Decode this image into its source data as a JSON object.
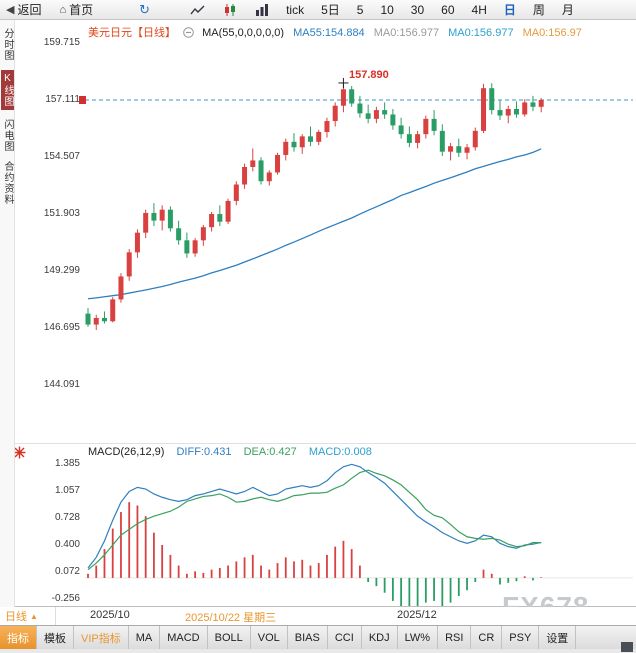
{
  "icons": {
    "back_arrow": "◀",
    "home": "⌂",
    "refresh": "↻"
  },
  "toolbar": {
    "back": "返回",
    "home": "首页",
    "tick": "tick",
    "five_day": "5日",
    "periods": [
      "5",
      "10",
      "30",
      "60",
      "4H",
      "日",
      "周",
      "月"
    ],
    "active_period": "日"
  },
  "sidebar": {
    "items": [
      {
        "label": "分时图",
        "active": false
      },
      {
        "label": "K线图",
        "active": true
      },
      {
        "label": "闪电图",
        "active": false
      },
      {
        "label": "合约资料",
        "active": false
      }
    ]
  },
  "chart_header": {
    "symbol": "美元日元",
    "period_tag": "【日线】",
    "ma_param": "MA(55,0,0,0,0,0)",
    "ma_values": [
      {
        "label": "MA55:154.884",
        "color": "#2e7fc0"
      },
      {
        "label": "MA0:156.977",
        "color": "#9a9a9a"
      },
      {
        "label": "MA0:156.977",
        "color": "#2e9fd0"
      },
      {
        "label": "MA0:156.97",
        "color": "#e39b3b"
      }
    ]
  },
  "main_axis": [
    "159.715",
    "157.111",
    "154.507",
    "151.903",
    "149.299",
    "146.695",
    "144.091"
  ],
  "macd_axis": [
    "1.385",
    "1.057",
    "0.728",
    "0.400",
    "0.072",
    "-0.256"
  ],
  "annotation": {
    "peak_price": "157.890"
  },
  "macd_header": {
    "title": "MACD(26,12,9)",
    "diff_label": "DIFF:0.431",
    "dea_label": "DEA:0.427",
    "macd_label": "MACD:0.008"
  },
  "x_axis": {
    "labels": [
      "2025/10",
      "2025/10/22 星期三",
      "2025/12"
    ],
    "highlight_index": 1
  },
  "watermark": "FX678",
  "bottom": {
    "period_selector": "日线",
    "arrow": "▲",
    "tabs": [
      "指标",
      "模板",
      "VIP指标",
      "MA",
      "MACD",
      "BOLL",
      "VOL",
      "BIAS",
      "CCI",
      "KDJ",
      "LW%",
      "RSI",
      "CR",
      "PSY",
      "设置"
    ],
    "active_tab": "指标",
    "vip_tab": "VIP指标"
  },
  "colors": {
    "up": "#d94040",
    "down": "#2a9d66",
    "ma55": "#2e7fc0",
    "diff": "#2e7fc0",
    "dea": "#3aa05f",
    "dashed": "#3a97c9",
    "tag": "#d03030",
    "cross": "#222222"
  },
  "chart_data": {
    "type": "candlestick+macd",
    "title": "美元日元 日线",
    "ylim": [
      144.091,
      159.715
    ],
    "macd_ylim": [
      -0.256,
      1.385
    ],
    "last_price": 157.111,
    "peak": {
      "index": 31,
      "price": 157.89
    },
    "candles": [
      [
        147.35,
        147.6,
        146.75,
        146.85
      ],
      [
        146.85,
        147.3,
        146.6,
        147.15
      ],
      [
        147.15,
        147.45,
        146.9,
        147.0
      ],
      [
        147.0,
        148.1,
        146.95,
        148.0
      ],
      [
        148.0,
        149.2,
        147.85,
        149.05
      ],
      [
        149.05,
        150.3,
        148.85,
        150.15
      ],
      [
        150.15,
        151.2,
        149.9,
        151.05
      ],
      [
        151.05,
        152.1,
        150.8,
        151.95
      ],
      [
        151.95,
        152.4,
        151.35,
        151.6
      ],
      [
        151.6,
        152.3,
        151.15,
        152.1
      ],
      [
        152.1,
        152.25,
        151.1,
        151.25
      ],
      [
        151.25,
        151.6,
        150.5,
        150.7
      ],
      [
        150.7,
        151.05,
        149.9,
        150.1
      ],
      [
        150.1,
        150.8,
        149.95,
        150.7
      ],
      [
        150.7,
        151.4,
        150.45,
        151.3
      ],
      [
        151.3,
        152.0,
        151.1,
        151.9
      ],
      [
        151.9,
        152.3,
        151.35,
        151.55
      ],
      [
        151.55,
        152.6,
        151.45,
        152.5
      ],
      [
        152.5,
        153.4,
        152.3,
        153.25
      ],
      [
        153.25,
        154.2,
        153.05,
        154.05
      ],
      [
        154.05,
        154.9,
        153.85,
        154.35
      ],
      [
        154.35,
        154.5,
        153.25,
        153.4
      ],
      [
        153.4,
        153.9,
        153.2,
        153.8
      ],
      [
        153.8,
        154.7,
        153.7,
        154.6
      ],
      [
        154.6,
        155.35,
        154.35,
        155.2
      ],
      [
        155.2,
        155.6,
        154.75,
        154.95
      ],
      [
        154.95,
        155.55,
        154.65,
        155.45
      ],
      [
        155.45,
        155.9,
        155.0,
        155.2
      ],
      [
        155.2,
        155.75,
        155.05,
        155.65
      ],
      [
        155.65,
        156.3,
        155.4,
        156.15
      ],
      [
        156.15,
        157.0,
        155.9,
        156.85
      ],
      [
        156.85,
        157.89,
        156.55,
        157.6
      ],
      [
        157.6,
        157.75,
        156.8,
        156.95
      ],
      [
        156.95,
        157.3,
        156.3,
        156.5
      ],
      [
        156.5,
        156.9,
        156.05,
        156.25
      ],
      [
        156.25,
        156.8,
        156.05,
        156.65
      ],
      [
        156.65,
        157.0,
        156.25,
        156.45
      ],
      [
        156.45,
        156.7,
        155.75,
        155.95
      ],
      [
        155.95,
        156.3,
        155.35,
        155.55
      ],
      [
        155.55,
        155.9,
        154.95,
        155.15
      ],
      [
        155.15,
        155.7,
        154.9,
        155.55
      ],
      [
        155.55,
        156.4,
        155.35,
        156.25
      ],
      [
        156.25,
        156.65,
        155.5,
        155.7
      ],
      [
        155.7,
        156.0,
        154.55,
        154.75
      ],
      [
        154.75,
        155.15,
        154.35,
        155.0
      ],
      [
        155.0,
        155.35,
        154.5,
        154.7
      ],
      [
        154.7,
        155.1,
        154.4,
        154.95
      ],
      [
        154.95,
        155.85,
        154.8,
        155.7
      ],
      [
        155.7,
        157.85,
        155.6,
        157.65
      ],
      [
        157.65,
        157.88,
        156.45,
        156.65
      ],
      [
        156.65,
        157.1,
        156.2,
        156.4
      ],
      [
        156.4,
        156.85,
        156.05,
        156.7
      ],
      [
        156.7,
        157.05,
        156.3,
        156.45
      ],
      [
        156.45,
        157.15,
        156.35,
        157.0
      ],
      [
        157.0,
        157.3,
        156.6,
        156.8
      ],
      [
        156.8,
        157.2,
        156.55,
        157.11
      ]
    ],
    "ma55": [
      148.03,
      148.07,
      148.12,
      148.17,
      148.22,
      148.29,
      148.36,
      148.43,
      148.51,
      148.59,
      148.68,
      148.79,
      148.88,
      148.97,
      149.08,
      149.21,
      149.32,
      149.44,
      149.56,
      149.71,
      149.85,
      150.0,
      150.15,
      150.3,
      150.47,
      150.62,
      150.78,
      150.94,
      151.11,
      151.27,
      151.42,
      151.57,
      151.72,
      151.9,
      152.07,
      152.23,
      152.4,
      152.56,
      152.75,
      152.88,
      153.02,
      153.16,
      153.31,
      153.44,
      153.56,
      153.69,
      153.82,
      153.97,
      154.08,
      154.19,
      154.3,
      154.4,
      154.51,
      154.6,
      154.72,
      154.88
    ],
    "macd": {
      "diff": [
        0.12,
        0.25,
        0.45,
        0.7,
        0.92,
        1.05,
        1.1,
        1.08,
        1.02,
        0.98,
        0.95,
        0.93,
        0.95,
        1.0,
        1.02,
        1.05,
        1.08,
        1.05,
        1.02,
        1.05,
        1.1,
        1.05,
        1.0,
        1.02,
        1.08,
        1.1,
        1.12,
        1.1,
        1.12,
        1.18,
        1.28,
        1.35,
        1.38,
        1.35,
        1.28,
        1.22,
        1.15,
        1.05,
        0.95,
        0.85,
        0.75,
        0.68,
        0.62,
        0.55,
        0.5,
        0.45,
        0.42,
        0.45,
        0.52,
        0.5,
        0.42,
        0.38,
        0.36,
        0.4,
        0.41,
        0.431
      ],
      "dea": [
        0.1,
        0.18,
        0.28,
        0.4,
        0.52,
        0.59,
        0.66,
        0.71,
        0.75,
        0.78,
        0.81,
        0.86,
        0.93,
        0.96,
        0.99,
        1.0,
        1.02,
        0.98,
        0.92,
        0.93,
        0.96,
        0.98,
        0.95,
        0.93,
        0.96,
        1.0,
        1.01,
        1.03,
        1.03,
        1.04,
        1.09,
        1.13,
        1.21,
        1.28,
        1.31,
        1.27,
        1.24,
        1.19,
        1.13,
        1.04,
        0.95,
        0.83,
        0.76,
        0.73,
        0.65,
        0.56,
        0.5,
        0.48,
        0.47,
        0.48,
        0.46,
        0.41,
        0.38,
        0.39,
        0.43,
        0.427
      ],
      "hist": [
        0.05,
        0.15,
        0.35,
        0.6,
        0.8,
        0.92,
        0.88,
        0.75,
        0.55,
        0.4,
        0.28,
        0.15,
        0.05,
        0.08,
        0.06,
        0.1,
        0.12,
        0.15,
        0.2,
        0.25,
        0.28,
        0.15,
        0.1,
        0.18,
        0.25,
        0.2,
        0.22,
        0.15,
        0.18,
        0.28,
        0.38,
        0.45,
        0.35,
        0.15,
        -0.05,
        -0.1,
        -0.18,
        -0.28,
        -0.35,
        -0.38,
        -0.4,
        -0.3,
        -0.28,
        -0.35,
        -0.3,
        -0.22,
        -0.15,
        -0.05,
        0.1,
        0.05,
        -0.08,
        -0.06,
        -0.04,
        0.02,
        -0.03,
        0.008
      ]
    }
  }
}
